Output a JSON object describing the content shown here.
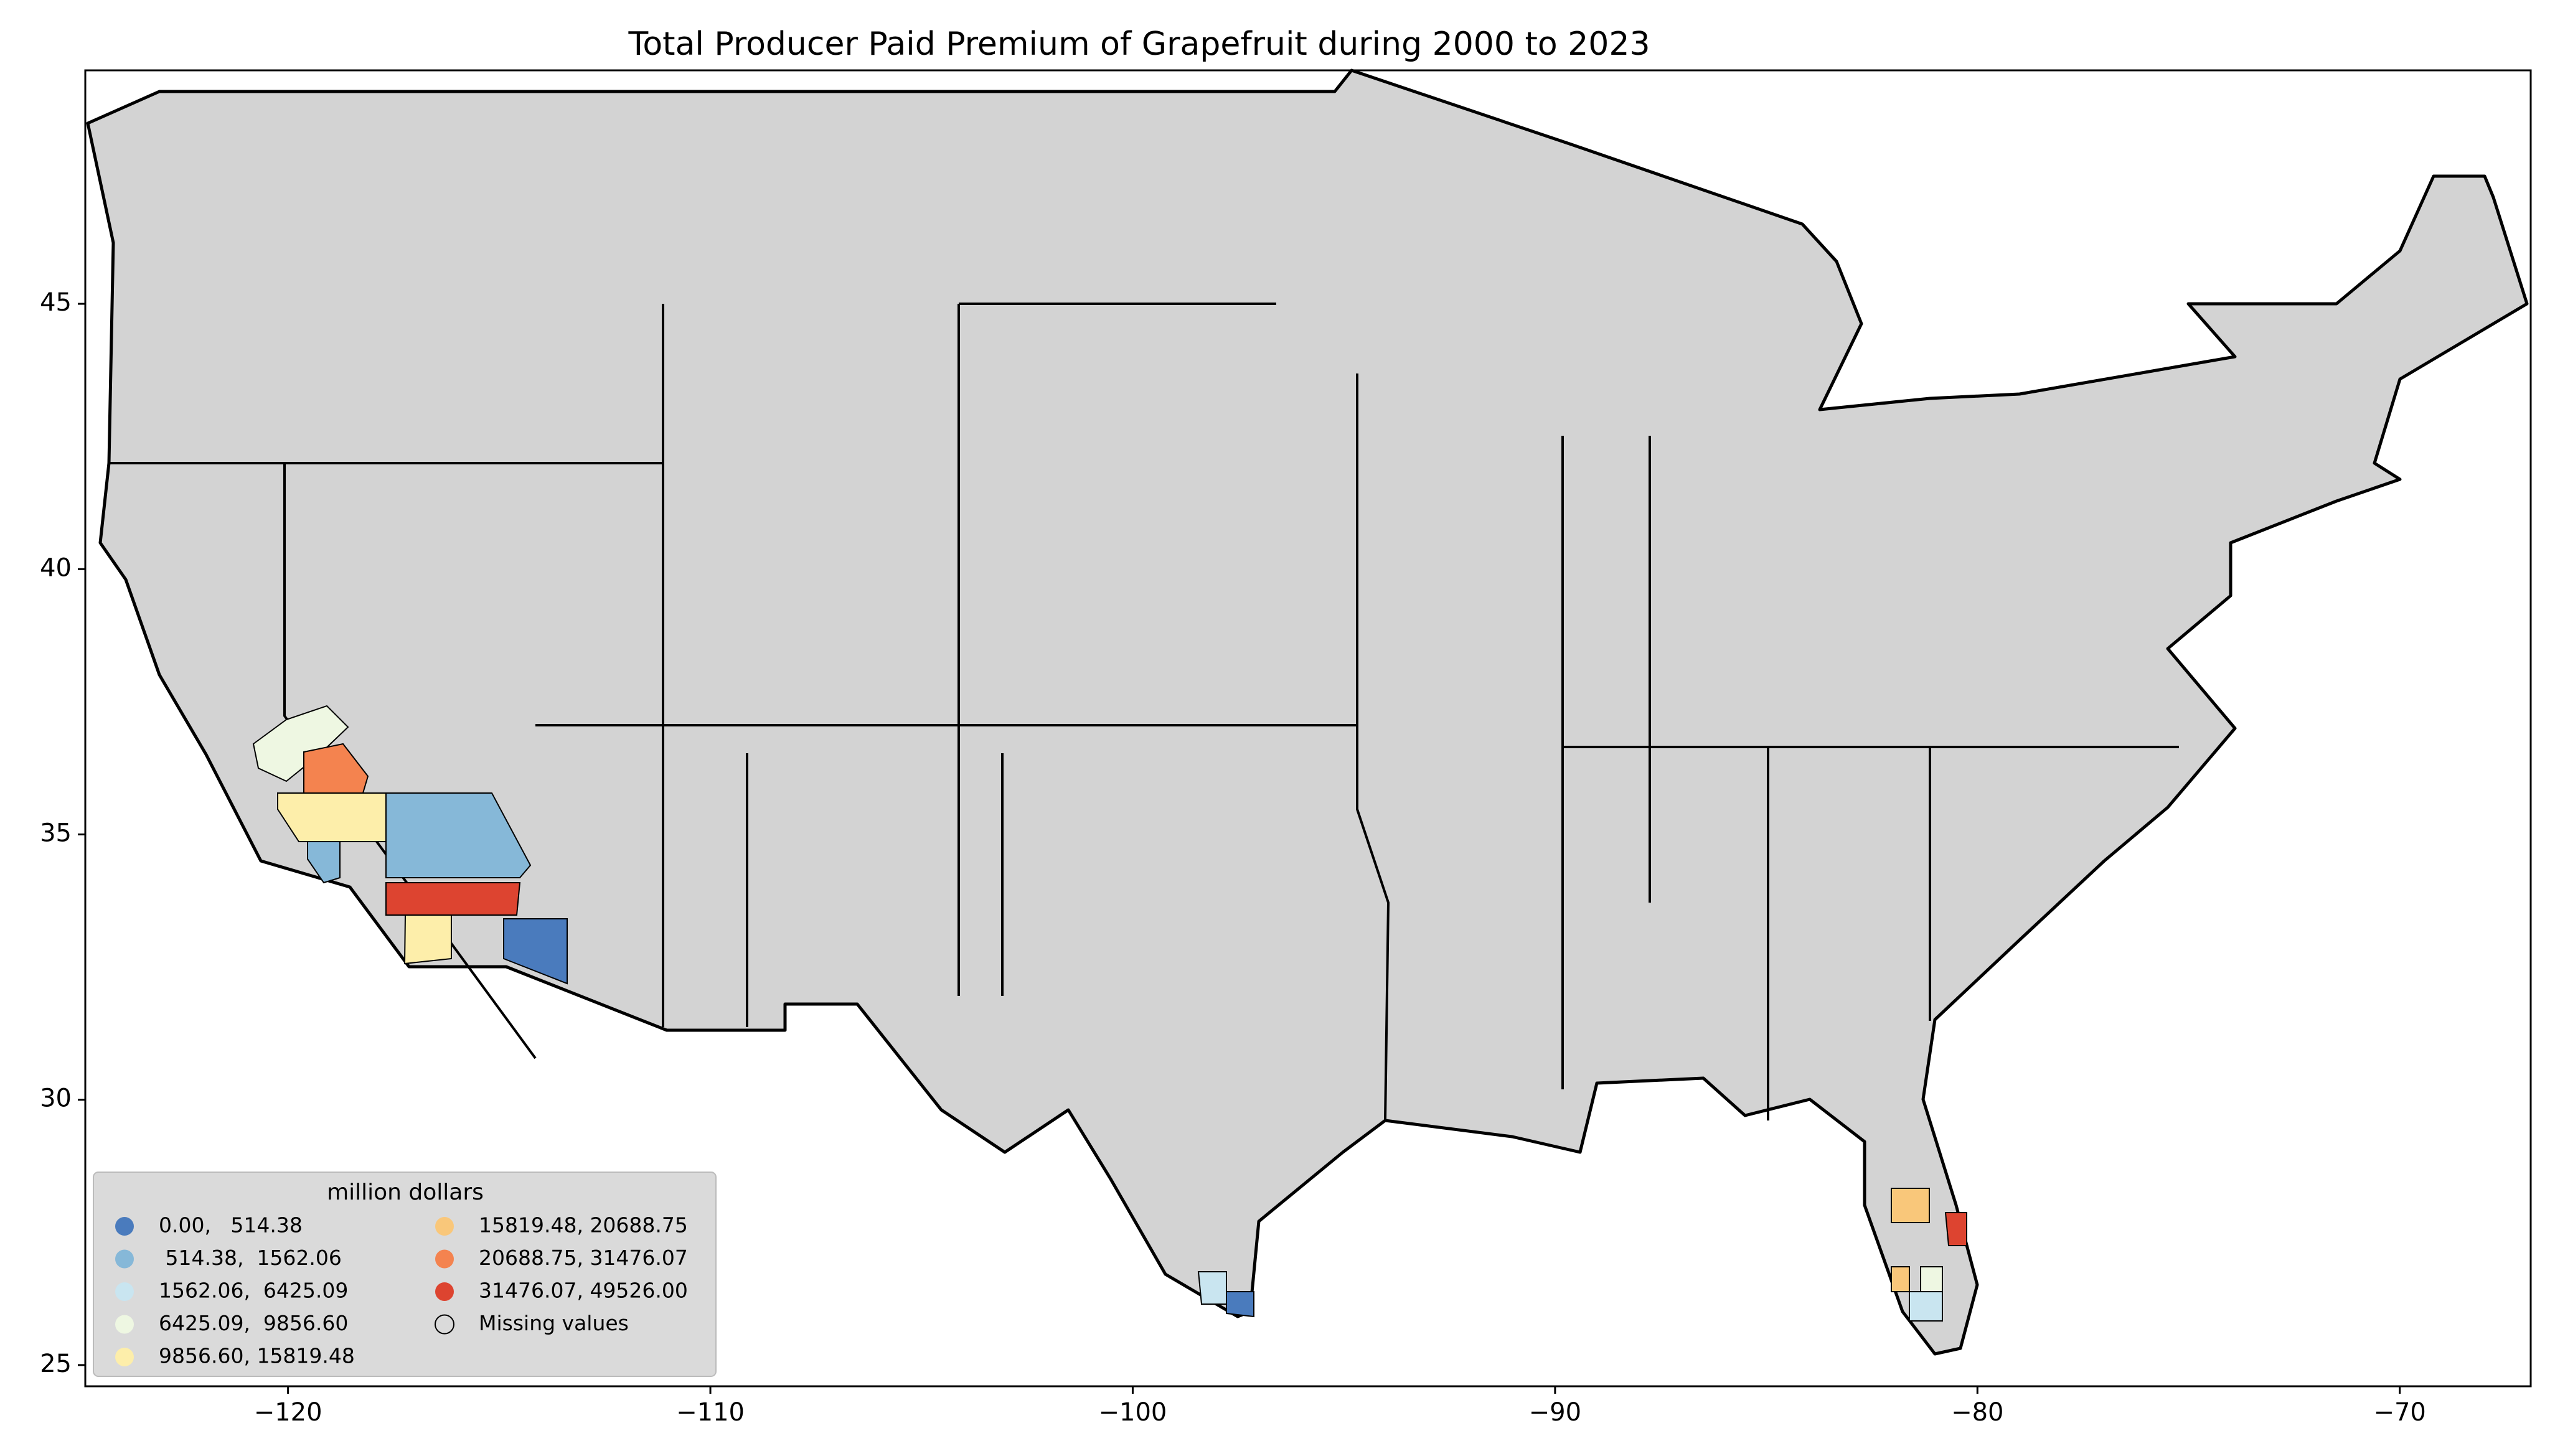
{
  "chart_data": {
    "type": "map",
    "title": "Total Producer Paid Premium of Grapefruit during 2000 to 2023",
    "xlim": [
      -124.8,
      -66.9
    ],
    "ylim": [
      24.6,
      49.4
    ],
    "xticks": [
      {
        "value": -120,
        "label": "−120"
      },
      {
        "value": -110,
        "label": "−110"
      },
      {
        "value": -100,
        "label": "−100"
      },
      {
        "value": -90,
        "label": "−90"
      },
      {
        "value": -80,
        "label": "−80"
      },
      {
        "value": -70,
        "label": "−70"
      }
    ],
    "yticks": [
      25,
      30,
      35,
      40,
      45
    ],
    "legend": {
      "title": "million dollars",
      "entries": [
        {
          "label": "0.00,   514.38",
          "color": "#4a7bbd"
        },
        {
          "label": " 514.38,  1562.06",
          "color": "#86b8d8"
        },
        {
          "label": "1562.06,  6425.09",
          "color": "#c9e5f0"
        },
        {
          "label": "6425.09,  9856.60",
          "color": "#eef7e2"
        },
        {
          "label": "9856.60, 15819.48",
          "color": "#fdeeaa"
        },
        {
          "label": "15819.48, 20688.75",
          "color": "#f9c77a"
        },
        {
          "label": "20688.75, 31476.07",
          "color": "#f4834f"
        },
        {
          "label": "31476.07, 49526.00",
          "color": "#dd4430"
        },
        {
          "label": "Missing values"
        }
      ]
    }
  }
}
